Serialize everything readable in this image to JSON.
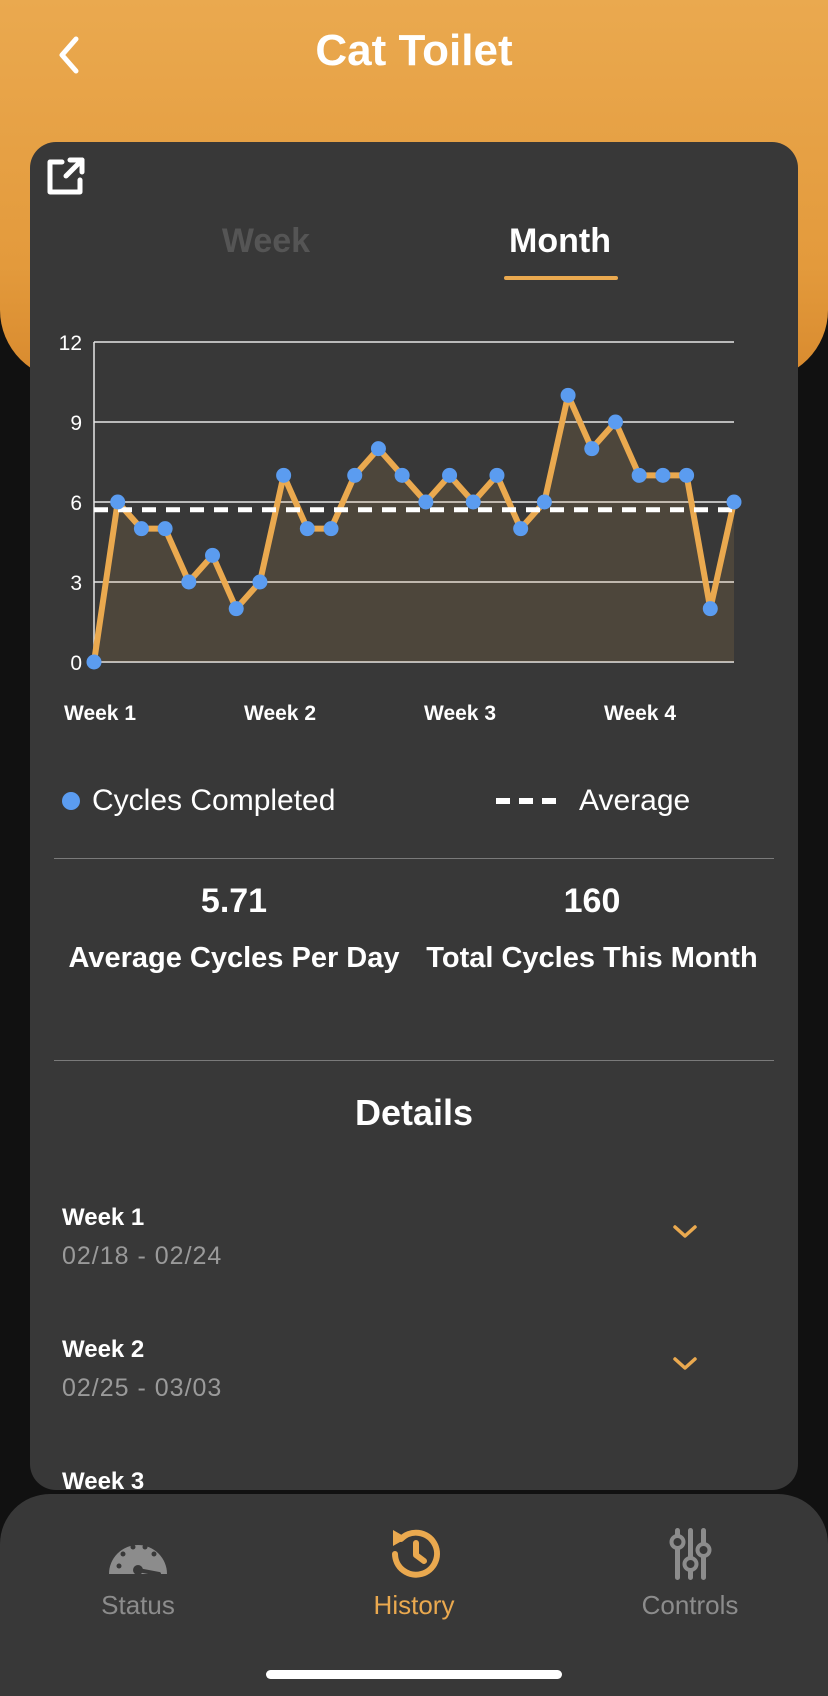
{
  "header": {
    "title": "Cat Toilet"
  },
  "tabs": [
    {
      "label": "Week",
      "active": false
    },
    {
      "label": "Month",
      "active": true
    }
  ],
  "chart_data": {
    "type": "line",
    "x": [
      1,
      2,
      3,
      4,
      5,
      6,
      7,
      8,
      9,
      10,
      11,
      12,
      13,
      14,
      15,
      16,
      17,
      18,
      19,
      20,
      21,
      22,
      23,
      24,
      25,
      26,
      27,
      28
    ],
    "series": [
      {
        "name": "Cycles Completed",
        "values": [
          0,
          6,
          5,
          5,
          3,
          4,
          2,
          3,
          7,
          5,
          5,
          7,
          8,
          7,
          6,
          7,
          6,
          7,
          5,
          6,
          10,
          8,
          9,
          7,
          7,
          7,
          2,
          6
        ],
        "color": "#eaa94f",
        "marker_color": "#5b9cf0"
      },
      {
        "name": "Average",
        "value": 5.71,
        "style": "dashed",
        "color": "#ffffff"
      }
    ],
    "x_tick_labels": [
      "Week 1",
      "Week 2",
      "Week 3",
      "Week 4"
    ],
    "y_ticks": [
      0,
      3,
      6,
      9,
      12
    ],
    "ylim": [
      0,
      12
    ],
    "grid": true,
    "fill_area": true
  },
  "legend": {
    "cycles_label": "Cycles Completed",
    "average_label": "Average"
  },
  "stats": {
    "avg_value": "5.71",
    "avg_label": "Average Cycles Per Day",
    "total_value": "160",
    "total_label": "Total Cycles This Month"
  },
  "details": {
    "title": "Details",
    "items": [
      {
        "week": "Week 1",
        "range": "02/18 - 02/24"
      },
      {
        "week": "Week 2",
        "range": "02/25 - 03/03"
      },
      {
        "week": "Week 3",
        "range": ""
      }
    ]
  },
  "nav": {
    "items": [
      {
        "label": "Status",
        "icon": "gauge-icon",
        "active": false
      },
      {
        "label": "History",
        "icon": "history-icon",
        "active": true
      },
      {
        "label": "Controls",
        "icon": "sliders-icon",
        "active": false
      }
    ]
  },
  "colors": {
    "accent": "#eaa94f",
    "card_bg": "#383838",
    "marker": "#5b9cf0",
    "inactive": "#8c8c8c"
  }
}
